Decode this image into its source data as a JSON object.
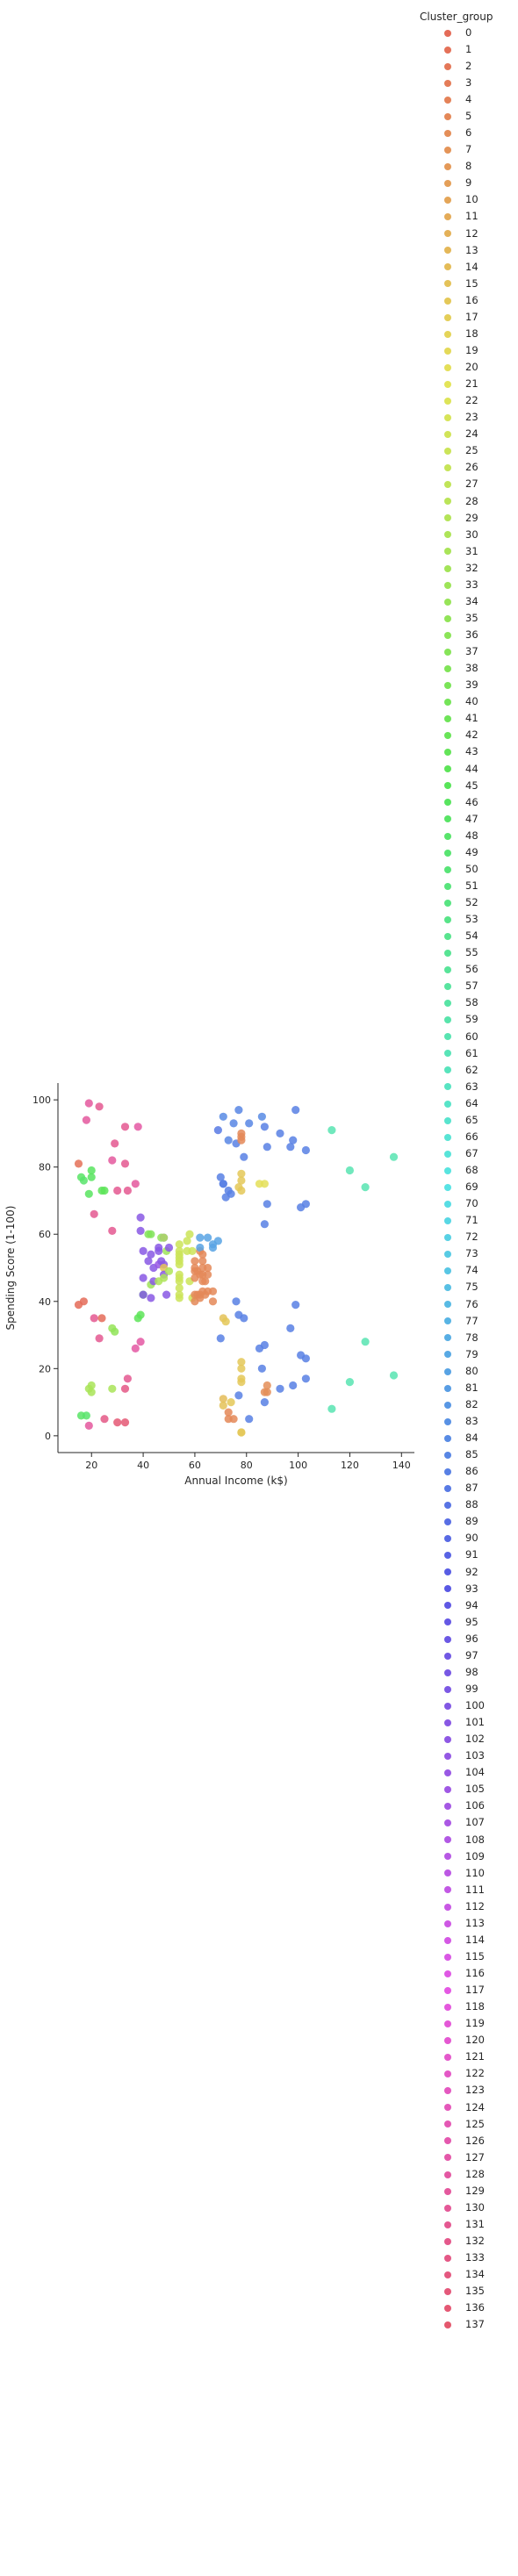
{
  "chart_data": {
    "type": "scatter",
    "xlabel": "Annual Income (k$)",
    "ylabel": "Spending Score (1-100)",
    "xlim": [
      7,
      145
    ],
    "ylim": [
      -5,
      105
    ],
    "xticks": [
      20,
      40,
      60,
      80,
      100,
      120,
      140
    ],
    "yticks": [
      0,
      20,
      40,
      60,
      80,
      100
    ],
    "grid": false,
    "legend": {
      "title": "Cluster_group",
      "placement": "outside-right",
      "entries": [
        "0",
        "1",
        "2",
        "3",
        "4",
        "5",
        "6",
        "7",
        "8",
        "9",
        "10",
        "11",
        "12",
        "13",
        "14",
        "15",
        "16",
        "17",
        "18",
        "19",
        "20",
        "21",
        "22",
        "23",
        "24",
        "25",
        "26",
        "27",
        "28",
        "29",
        "30",
        "31",
        "32",
        "33",
        "34",
        "35",
        "36",
        "37",
        "38",
        "39",
        "40",
        "41",
        "42",
        "43",
        "44",
        "45",
        "46",
        "47",
        "48",
        "49",
        "50",
        "51",
        "52",
        "53",
        "54",
        "55",
        "56",
        "57",
        "58",
        "59",
        "60",
        "61",
        "62",
        "63",
        "64",
        "65",
        "66",
        "67",
        "68",
        "69",
        "70",
        "71",
        "72",
        "73",
        "74",
        "75",
        "76",
        "77",
        "78",
        "79",
        "80",
        "81",
        "82",
        "83",
        "84",
        "85",
        "86",
        "87",
        "88",
        "89",
        "90",
        "91",
        "92",
        "93",
        "94",
        "95",
        "96",
        "97",
        "98",
        "99",
        "100",
        "101",
        "102",
        "103",
        "104",
        "105",
        "106",
        "107",
        "108",
        "109",
        "110",
        "111",
        "112",
        "113",
        "114",
        "115",
        "116",
        "117",
        "118",
        "119",
        "120",
        "121",
        "122",
        "123",
        "124",
        "125",
        "126",
        "127",
        "128",
        "129",
        "130",
        "131",
        "132",
        "133",
        "134",
        "135",
        "136",
        "137"
      ]
    },
    "points": [
      [
        15,
        39,
        0
      ],
      [
        15,
        81,
        1
      ],
      [
        16,
        6,
        47
      ],
      [
        16,
        77,
        47
      ],
      [
        17,
        40,
        0
      ],
      [
        17,
        76,
        48
      ],
      [
        18,
        6,
        48
      ],
      [
        18,
        94,
        129
      ],
      [
        19,
        3,
        129
      ],
      [
        19,
        72,
        46
      ],
      [
        19,
        14,
        31
      ],
      [
        19,
        99,
        129
      ],
      [
        20,
        15,
        31
      ],
      [
        20,
        77,
        46
      ],
      [
        20,
        13,
        31
      ],
      [
        20,
        79,
        46
      ],
      [
        21,
        35,
        131
      ],
      [
        21,
        66,
        131
      ],
      [
        23,
        29,
        131
      ],
      [
        23,
        98,
        131
      ],
      [
        24,
        35,
        0
      ],
      [
        24,
        73,
        44
      ],
      [
        25,
        5,
        133
      ],
      [
        25,
        73,
        44
      ],
      [
        28,
        14,
        31
      ],
      [
        28,
        82,
        129
      ],
      [
        28,
        32,
        34
      ],
      [
        28,
        61,
        131
      ],
      [
        29,
        31,
        35
      ],
      [
        29,
        87,
        131
      ],
      [
        30,
        4,
        136
      ],
      [
        30,
        73,
        131
      ],
      [
        33,
        4,
        136
      ],
      [
        33,
        92,
        131
      ],
      [
        33,
        14,
        133
      ],
      [
        33,
        81,
        131
      ],
      [
        34,
        17,
        131
      ],
      [
        34,
        73,
        131
      ],
      [
        37,
        26,
        128
      ],
      [
        37,
        75,
        129
      ],
      [
        38,
        35,
        44
      ],
      [
        38,
        92,
        128
      ],
      [
        39,
        36,
        44
      ],
      [
        39,
        61,
        101
      ],
      [
        39,
        28,
        128
      ],
      [
        39,
        65,
        101
      ],
      [
        40,
        55,
        101
      ],
      [
        40,
        47,
        101
      ],
      [
        40,
        42,
        44
      ],
      [
        40,
        42,
        101
      ],
      [
        42,
        52,
        101
      ],
      [
        42,
        60,
        38
      ],
      [
        43,
        54,
        101
      ],
      [
        43,
        60,
        38
      ],
      [
        43,
        45,
        33
      ],
      [
        43,
        41,
        101
      ],
      [
        44,
        50,
        101
      ],
      [
        44,
        46,
        101
      ],
      [
        46,
        51,
        104
      ],
      [
        46,
        46,
        30
      ],
      [
        46,
        56,
        101
      ],
      [
        46,
        55,
        101
      ],
      [
        47,
        52,
        101
      ],
      [
        47,
        59,
        35
      ],
      [
        48,
        51,
        101
      ],
      [
        48,
        59,
        101
      ],
      [
        48,
        50,
        15
      ],
      [
        48,
        48,
        101
      ],
      [
        48,
        59,
        30
      ],
      [
        48,
        47,
        30
      ],
      [
        49,
        55,
        33
      ],
      [
        49,
        42,
        101
      ],
      [
        50,
        49,
        30
      ],
      [
        50,
        56,
        101
      ],
      [
        54,
        47,
        25
      ],
      [
        54,
        54,
        25
      ],
      [
        54,
        53,
        25
      ],
      [
        54,
        48,
        25
      ],
      [
        54,
        52,
        25
      ],
      [
        54,
        42,
        25
      ],
      [
        54,
        51,
        25
      ],
      [
        54,
        55,
        25
      ],
      [
        54,
        41,
        25
      ],
      [
        54,
        44,
        25
      ],
      [
        54,
        57,
        25
      ],
      [
        54,
        46,
        25
      ],
      [
        57,
        58,
        25
      ],
      [
        57,
        55,
        25
      ],
      [
        58,
        60,
        25
      ],
      [
        58,
        46,
        25
      ],
      [
        59,
        55,
        25
      ],
      [
        59,
        41,
        25
      ],
      [
        60,
        49,
        5
      ],
      [
        60,
        40,
        5
      ],
      [
        60,
        42,
        5
      ],
      [
        60,
        52,
        5
      ],
      [
        60,
        47,
        5
      ],
      [
        60,
        50,
        5
      ],
      [
        61,
        42,
        5
      ],
      [
        61,
        49,
        5
      ],
      [
        62,
        41,
        5
      ],
      [
        62,
        48,
        5
      ],
      [
        62,
        59,
        80
      ],
      [
        62,
        55,
        5
      ],
      [
        62,
        56,
        80
      ],
      [
        62,
        42,
        5
      ],
      [
        63,
        50,
        5
      ],
      [
        63,
        46,
        5
      ],
      [
        63,
        43,
        5
      ],
      [
        63,
        48,
        5
      ],
      [
        63,
        52,
        5
      ],
      [
        63,
        54,
        5
      ],
      [
        64,
        42,
        5
      ],
      [
        64,
        46,
        5
      ],
      [
        65,
        48,
        5
      ],
      [
        65,
        50,
        5
      ],
      [
        65,
        43,
        5
      ],
      [
        65,
        59,
        80
      ],
      [
        67,
        43,
        5
      ],
      [
        67,
        57,
        80
      ],
      [
        67,
        56,
        80
      ],
      [
        67,
        40,
        5
      ],
      [
        69,
        58,
        80
      ],
      [
        69,
        91,
        87
      ],
      [
        70,
        29,
        86
      ],
      [
        70,
        77,
        86
      ],
      [
        71,
        35,
        15
      ],
      [
        71,
        95,
        84
      ],
      [
        71,
        11,
        14
      ],
      [
        71,
        75,
        86
      ],
      [
        71,
        9,
        15
      ],
      [
        71,
        75,
        86
      ],
      [
        72,
        34,
        16
      ],
      [
        72,
        71,
        86
      ],
      [
        73,
        5,
        5
      ],
      [
        73,
        88,
        85
      ],
      [
        73,
        7,
        5
      ],
      [
        73,
        73,
        86
      ],
      [
        74,
        10,
        16
      ],
      [
        74,
        72,
        86
      ],
      [
        75,
        5,
        5
      ],
      [
        75,
        93,
        85
      ],
      [
        76,
        40,
        86
      ],
      [
        76,
        87,
        86
      ],
      [
        77,
        12,
        86
      ],
      [
        77,
        97,
        85
      ],
      [
        77,
        36,
        86
      ],
      [
        77,
        74,
        16
      ],
      [
        78,
        22,
        16
      ],
      [
        78,
        90,
        5
      ],
      [
        78,
        17,
        16
      ],
      [
        78,
        88,
        5
      ],
      [
        78,
        20,
        16
      ],
      [
        78,
        76,
        16
      ],
      [
        78,
        16,
        16
      ],
      [
        78,
        89,
        5
      ],
      [
        78,
        1,
        16
      ],
      [
        78,
        78,
        16
      ],
      [
        78,
        1,
        16
      ],
      [
        78,
        73,
        16
      ],
      [
        79,
        35,
        86
      ],
      [
        79,
        83,
        86
      ],
      [
        81,
        5,
        86
      ],
      [
        81,
        93,
        85
      ],
      [
        85,
        26,
        86
      ],
      [
        85,
        75,
        20
      ],
      [
        86,
        20,
        86
      ],
      [
        86,
        95,
        84
      ],
      [
        87,
        27,
        86
      ],
      [
        87,
        63,
        86
      ],
      [
        87,
        13,
        6
      ],
      [
        87,
        75,
        20
      ],
      [
        87,
        10,
        86
      ],
      [
        87,
        92,
        86
      ],
      [
        88,
        13,
        6
      ],
      [
        88,
        86,
        86
      ],
      [
        88,
        15,
        6
      ],
      [
        88,
        69,
        86
      ],
      [
        93,
        14,
        86
      ],
      [
        93,
        90,
        86
      ],
      [
        97,
        32,
        86
      ],
      [
        97,
        86,
        86
      ],
      [
        98,
        15,
        86
      ],
      [
        98,
        88,
        86
      ],
      [
        99,
        39,
        86
      ],
      [
        99,
        97,
        86
      ],
      [
        101,
        24,
        86
      ],
      [
        101,
        68,
        86
      ],
      [
        103,
        17,
        86
      ],
      [
        103,
        85,
        86
      ],
      [
        103,
        23,
        86
      ],
      [
        103,
        69,
        86
      ],
      [
        113,
        8,
        60
      ],
      [
        113,
        91,
        60
      ],
      [
        120,
        16,
        60
      ],
      [
        120,
        79,
        60
      ],
      [
        126,
        28,
        60
      ],
      [
        126,
        74,
        60
      ],
      [
        137,
        18,
        60
      ],
      [
        137,
        83,
        60
      ]
    ]
  }
}
